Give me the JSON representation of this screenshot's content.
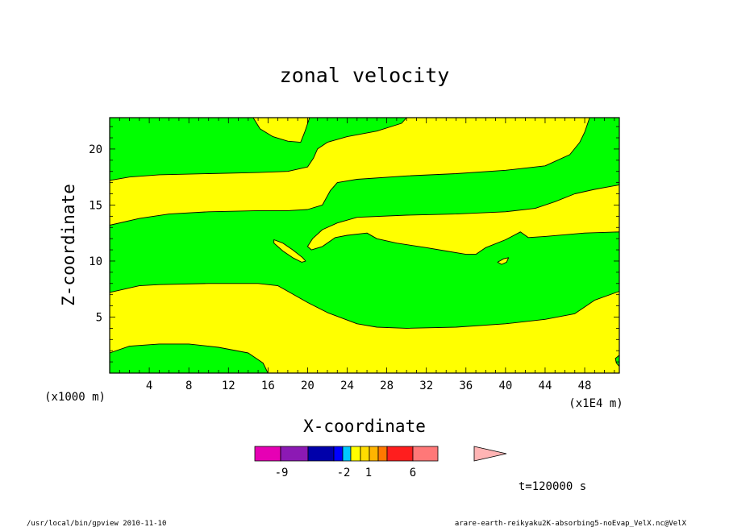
{
  "chart_data": {
    "type": "heatmap",
    "title": "zonal velocity",
    "xlabel": "X-coordinate",
    "ylabel": "Z-coordinate",
    "x_unit": "(x1E4 m)",
    "y_unit": "(x1000 m)",
    "xlim": [
      0,
      51.5
    ],
    "ylim": [
      0,
      22.8
    ],
    "x_ticks": [
      4,
      8,
      12,
      16,
      20,
      24,
      28,
      32,
      36,
      40,
      44,
      48
    ],
    "y_ticks": [
      5,
      10,
      15,
      20
    ],
    "grid": false,
    "fill_colors": {
      "positive": "#ffff00",
      "negative": "#00ff00"
    },
    "regions": [
      {
        "name": "green-band-top-left",
        "fill": "#00ff00",
        "polygon": [
          [
            0,
            17.2
          ],
          [
            2,
            17.5
          ],
          [
            5,
            17.7
          ],
          [
            10,
            17.8
          ],
          [
            15,
            17.9
          ],
          [
            18,
            18.0
          ],
          [
            20,
            18.4
          ],
          [
            20.6,
            19.2
          ],
          [
            21,
            20.0
          ],
          [
            22,
            20.6
          ],
          [
            24,
            21.1
          ],
          [
            27,
            21.6
          ],
          [
            29.5,
            22.3
          ],
          [
            30,
            22.8
          ],
          [
            0,
            22.8
          ]
        ]
      },
      {
        "name": "green-band-mid",
        "fill": "#00ff00",
        "polygon": [
          [
            0,
            13.2
          ],
          [
            3,
            13.8
          ],
          [
            6,
            14.2
          ],
          [
            10,
            14.4
          ],
          [
            15,
            14.5
          ],
          [
            18,
            14.5
          ],
          [
            20,
            14.6
          ],
          [
            21.5,
            15.0
          ],
          [
            22.3,
            16.3
          ],
          [
            23,
            17.0
          ],
          [
            25,
            17.3
          ],
          [
            30,
            17.6
          ],
          [
            35,
            17.8
          ],
          [
            40,
            18.1
          ],
          [
            44,
            18.5
          ],
          [
            46.5,
            19.5
          ],
          [
            47.5,
            20.6
          ],
          [
            48,
            21.5
          ],
          [
            48.5,
            22.8
          ],
          [
            51.5,
            22.8
          ],
          [
            51.5,
            16.8
          ],
          [
            49,
            16.4
          ],
          [
            47,
            16.0
          ],
          [
            45,
            15.3
          ],
          [
            43,
            14.7
          ],
          [
            40,
            14.4
          ],
          [
            35,
            14.2
          ],
          [
            30,
            14.1
          ],
          [
            25,
            13.9
          ],
          [
            23,
            13.4
          ],
          [
            21.5,
            12.8
          ],
          [
            20.5,
            12.0
          ],
          [
            20,
            11.3
          ],
          [
            20.4,
            11.0
          ],
          [
            21.5,
            11.3
          ],
          [
            22.8,
            12.1
          ],
          [
            24,
            12.3
          ],
          [
            26,
            12.5
          ],
          [
            27,
            12.0
          ],
          [
            29,
            11.6
          ],
          [
            32,
            11.2
          ],
          [
            34,
            10.9
          ],
          [
            36,
            10.6
          ],
          [
            37,
            10.6
          ],
          [
            38,
            11.2
          ],
          [
            40,
            11.9
          ],
          [
            41.5,
            12.6
          ],
          [
            42.3,
            12.1
          ],
          [
            44,
            12.2
          ],
          [
            48,
            12.5
          ],
          [
            51.5,
            12.6
          ],
          [
            51.5,
            7.3
          ],
          [
            49,
            6.5
          ],
          [
            47,
            5.3
          ],
          [
            44,
            4.8
          ],
          [
            40,
            4.4
          ],
          [
            35,
            4.1
          ],
          [
            30,
            4.0
          ],
          [
            27,
            4.1
          ],
          [
            25,
            4.4
          ],
          [
            22,
            5.4
          ],
          [
            20,
            6.3
          ],
          [
            18,
            7.3
          ],
          [
            17,
            7.8
          ],
          [
            15,
            8.0
          ],
          [
            10,
            8.0
          ],
          [
            5,
            7.9
          ],
          [
            3,
            7.8
          ],
          [
            0,
            7.2
          ]
        ]
      },
      {
        "name": "green-patch-bottom-left",
        "fill": "#00ff00",
        "polygon": [
          [
            0,
            0
          ],
          [
            0.4,
            0
          ],
          [
            0.2,
            0.3
          ],
          [
            0,
            0.6
          ]
        ]
      },
      {
        "name": "green-patch-bottom-mid",
        "fill": "#00ff00",
        "polygon": [
          [
            0,
            1.8
          ],
          [
            2,
            2.4
          ],
          [
            5,
            2.6
          ],
          [
            8,
            2.6
          ],
          [
            11,
            2.3
          ],
          [
            14,
            1.8
          ],
          [
            15.5,
            0.9
          ],
          [
            16,
            0
          ],
          [
            0,
            0
          ]
        ]
      },
      {
        "name": "green-patch-bottom-right",
        "fill": "#00ff00",
        "polygon": [
          [
            51.5,
            1.6
          ],
          [
            51.1,
            1.3
          ],
          [
            51.2,
            0.9
          ],
          [
            51.5,
            0.6
          ]
        ]
      },
      {
        "name": "yellow-island-left",
        "fill": "#ffff00",
        "polygon": [
          [
            16.6,
            11.9
          ],
          [
            17.5,
            11.6
          ],
          [
            18.5,
            11.0
          ],
          [
            19.5,
            10.3
          ],
          [
            19.8,
            10.0
          ],
          [
            19.4,
            9.9
          ],
          [
            18.5,
            10.3
          ],
          [
            17.5,
            10.9
          ],
          [
            16.6,
            11.6
          ]
        ]
      },
      {
        "name": "yellow-island-right",
        "fill": "#ffff00",
        "polygon": [
          [
            39.2,
            9.9
          ],
          [
            39.8,
            10.2
          ],
          [
            40.3,
            10.3
          ],
          [
            40.1,
            9.9
          ],
          [
            39.6,
            9.7
          ]
        ]
      },
      {
        "name": "yellow-pocket-top",
        "fill": "#ffff00",
        "polygon": [
          [
            14.5,
            22.8
          ],
          [
            15.2,
            21.8
          ],
          [
            16.5,
            21.1
          ],
          [
            18,
            20.7
          ],
          [
            19.3,
            20.6
          ],
          [
            19.7,
            21.5
          ],
          [
            20.2,
            22.8
          ]
        ]
      }
    ]
  },
  "colorbar": {
    "colors": [
      "#e600b4",
      "#8c19b4",
      "#0000aa",
      "#0000ff",
      "#00c8ff",
      "#ffff00",
      "#ffdc00",
      "#ffb400",
      "#ff7800",
      "#ff1e1e",
      "#ff7878",
      "#ffb4b4"
    ],
    "labels": [
      "-9",
      "-2",
      "1",
      "6"
    ]
  },
  "time_label": "t=120000 s",
  "footer": {
    "left": "/usr/local/bin/gpview  2010-11-10",
    "right": "arare-earth-reikyaku2K-absorbing5-noEvap_VelX.nc@VelX"
  }
}
